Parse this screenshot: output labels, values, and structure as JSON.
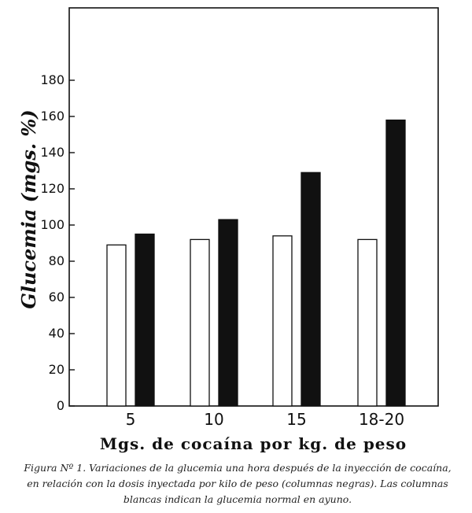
{
  "chart_data": {
    "type": "bar",
    "categories": [
      "5",
      "10",
      "15",
      "18-20"
    ],
    "series": [
      {
        "fill": "white",
        "values": [
          89,
          92,
          94,
          92
        ]
      },
      {
        "fill": "black",
        "values": [
          95,
          103,
          129,
          158
        ]
      }
    ],
    "ylabel": "Glucemia (mgs. %)",
    "xlabel": "Mgs. de cocaína por kg. de peso",
    "yticks": [
      0,
      20,
      40,
      60,
      80,
      100,
      120,
      140,
      160,
      180
    ],
    "ylim": [
      0,
      220
    ],
    "grid": false,
    "legend": "none"
  },
  "caption": {
    "line1": "Figura Nº 1.  Variaciones de la glucemia una hora después de la inyección de cocaína,",
    "line2": "en relación con la dosis inyectada por kilo de peso (columnas negras).  Las columnas",
    "line3": "blancas indican la glucemia normal en ayuno."
  },
  "colors": {
    "ink": "#111111",
    "paper": "#ffffff"
  }
}
